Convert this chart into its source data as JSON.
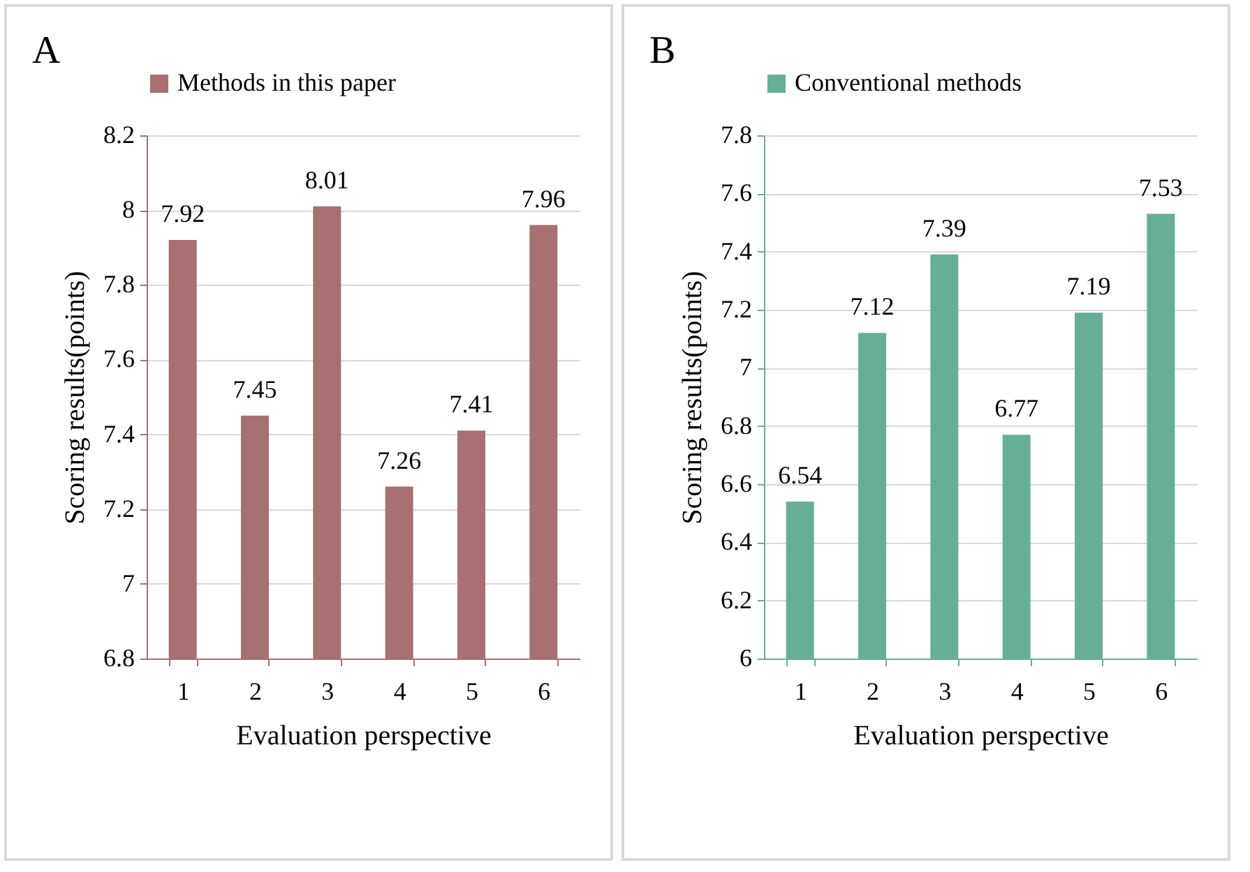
{
  "chart_data": [
    {
      "type": "bar",
      "title": "A",
      "xlabel": "Evaluation perspective",
      "ylabel": "Scoring results(points)",
      "categories": [
        "1",
        "2",
        "3",
        "4",
        "5",
        "6"
      ],
      "series": [
        {
          "name": "Methods in this paper",
          "color": "#a87070",
          "values": [
            7.92,
            7.45,
            8.01,
            7.26,
            7.41,
            7.96
          ]
        }
      ],
      "ylim": [
        6.8,
        8.2
      ],
      "yticks": [
        6.8,
        7,
        7.2,
        7.4,
        7.6,
        7.8,
        8,
        8.2
      ],
      "grid": "y",
      "legend": "top",
      "data_labels": true
    },
    {
      "type": "bar",
      "title": "B",
      "xlabel": "Evaluation perspective",
      "ylabel": "Scoring results(points)",
      "categories": [
        "1",
        "2",
        "3",
        "4",
        "5",
        "6"
      ],
      "series": [
        {
          "name": "Conventional methods",
          "color": "#66ae98",
          "values": [
            6.54,
            7.12,
            7.39,
            6.77,
            7.19,
            7.53
          ]
        }
      ],
      "ylim": [
        6,
        7.8
      ],
      "yticks": [
        6,
        6.2,
        6.4,
        6.6,
        6.8,
        7,
        7.2,
        7.4,
        7.6,
        7.8
      ],
      "grid": "y",
      "legend": "top",
      "data_labels": true
    }
  ]
}
